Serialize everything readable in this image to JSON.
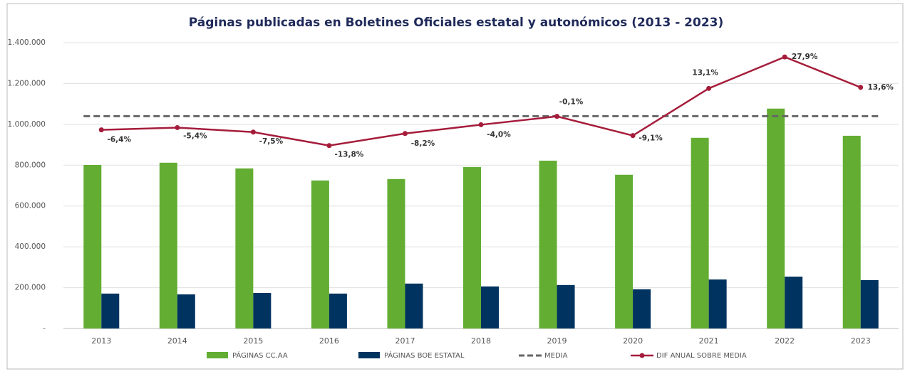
{
  "chart_data": {
    "type": "bar",
    "title": "Páginas publicadas en Boletines Oficiales estatal y autonómicos (2013 - 2023)",
    "categories": [
      "2013",
      "2014",
      "2015",
      "2016",
      "2017",
      "2018",
      "2019",
      "2020",
      "2021",
      "2022",
      "2023"
    ],
    "series": [
      {
        "name": "PÁGINAS CC.AA",
        "type": "bar",
        "color": "#63ad32",
        "values": [
          801000,
          812000,
          784000,
          725000,
          732000,
          791000,
          822000,
          753000,
          934000,
          1077000,
          944000
        ]
      },
      {
        "name": "PÁGINAS BOE ESTATAL",
        "type": "bar",
        "color": "#00335f",
        "values": [
          171000,
          167000,
          174000,
          171000,
          220000,
          206000,
          213000,
          192000,
          240000,
          254000,
          237000
        ]
      },
      {
        "name": "MEDIA",
        "type": "dashed",
        "color": "#666666",
        "values": [
          1040000,
          1040000,
          1040000,
          1040000,
          1040000,
          1040000,
          1040000,
          1040000,
          1040000,
          1040000,
          1040000
        ]
      },
      {
        "name": "DIF ANUAL SOBRE MEDIA",
        "type": "line",
        "color": "#a51c3a",
        "values": [
          973000,
          984000,
          962000,
          896000,
          955000,
          998000,
          1039000,
          945000,
          1176000,
          1330000,
          1181000
        ],
        "point_labels": [
          "-6,4%",
          "-5,4%",
          "-7,5%",
          "-13,8%",
          "-8,2%",
          "-4,0%",
          "-0,1%",
          "-9,1%",
          "13,1%",
          "27,9%",
          "13,6%"
        ]
      }
    ],
    "ylim": [
      0,
      1400000
    ],
    "yticks": [
      {
        "value": 0,
        "label": "-"
      },
      {
        "value": 200000,
        "label": "200.000"
      },
      {
        "value": 400000,
        "label": "400.000"
      },
      {
        "value": 600000,
        "label": "600.000"
      },
      {
        "value": 800000,
        "label": "800.000"
      },
      {
        "value": 1000000,
        "label": "1.000.000"
      },
      {
        "value": 1200000,
        "label": "1.200.000"
      },
      {
        "value": 1400000,
        "label": "1.400.000"
      }
    ],
    "grid": true,
    "legend": "bottom"
  }
}
